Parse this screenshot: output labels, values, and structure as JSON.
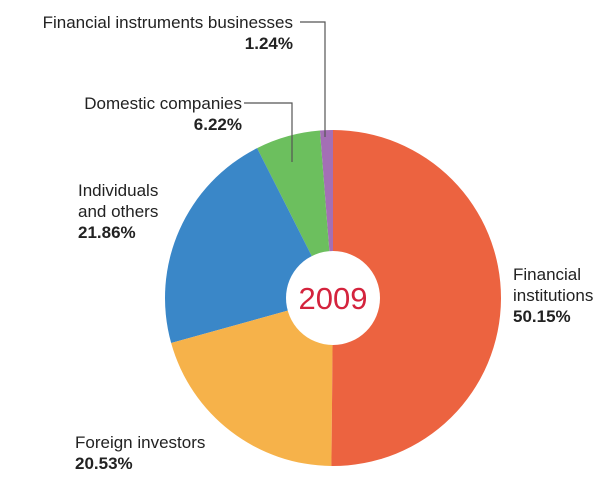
{
  "chart_data": {
    "type": "donut",
    "center_label": "2009",
    "categories": [
      "Financial institutions",
      "Foreign investors",
      "Individuals and others",
      "Domestic companies",
      "Financial instruments businesses"
    ],
    "values": [
      50.15,
      20.53,
      21.86,
      6.22,
      1.24
    ],
    "value_labels": [
      "50.15%",
      "20.53%",
      "21.86%",
      "6.22%",
      "1.24%"
    ],
    "colors": [
      "#ec6340",
      "#f6b24a",
      "#3a87c8",
      "#6cbf5e",
      "#a46fb5"
    ]
  }
}
